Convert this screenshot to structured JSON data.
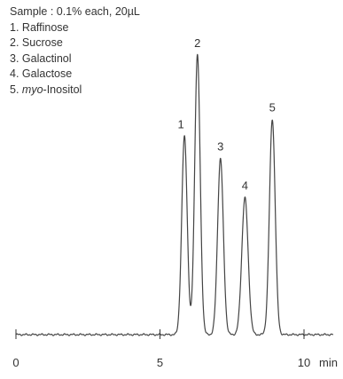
{
  "chart_data": {
    "type": "line",
    "legend": {
      "title": "Sample : 0.1% each, 20µL",
      "items": [
        {
          "num": "1.",
          "prefix": "",
          "italic": "",
          "suffix": "Raffinose"
        },
        {
          "num": "2.",
          "prefix": "",
          "italic": "",
          "suffix": "Sucrose"
        },
        {
          "num": "3.",
          "prefix": "",
          "italic": "",
          "suffix": "Galactinol"
        },
        {
          "num": "4.",
          "prefix": "",
          "italic": "",
          "suffix": "Galactose"
        },
        {
          "num": "5.",
          "prefix": "",
          "italic": "myo",
          "suffix": "-Inositol"
        }
      ]
    },
    "xlim": [
      0,
      11
    ],
    "ylim": [
      0,
      1.0
    ],
    "baseline": 0.0,
    "x_ticks": [
      {
        "value": 0,
        "label": "0"
      },
      {
        "value": 5,
        "label": "5"
      },
      {
        "value": 10,
        "label": "10"
      }
    ],
    "x_unit": "min",
    "peaks": [
      {
        "label": "1",
        "rt": 5.85,
        "height": 0.71,
        "width": 0.095
      },
      {
        "label": "2",
        "rt": 6.3,
        "height": 1.0,
        "width": 0.095
      },
      {
        "label": "3",
        "rt": 7.1,
        "height": 0.63,
        "width": 0.1
      },
      {
        "label": "4",
        "rt": 7.95,
        "height": 0.49,
        "width": 0.11
      },
      {
        "label": "5",
        "rt": 8.9,
        "height": 0.77,
        "width": 0.1
      }
    ],
    "line_color": "#444444",
    "grid": false
  }
}
